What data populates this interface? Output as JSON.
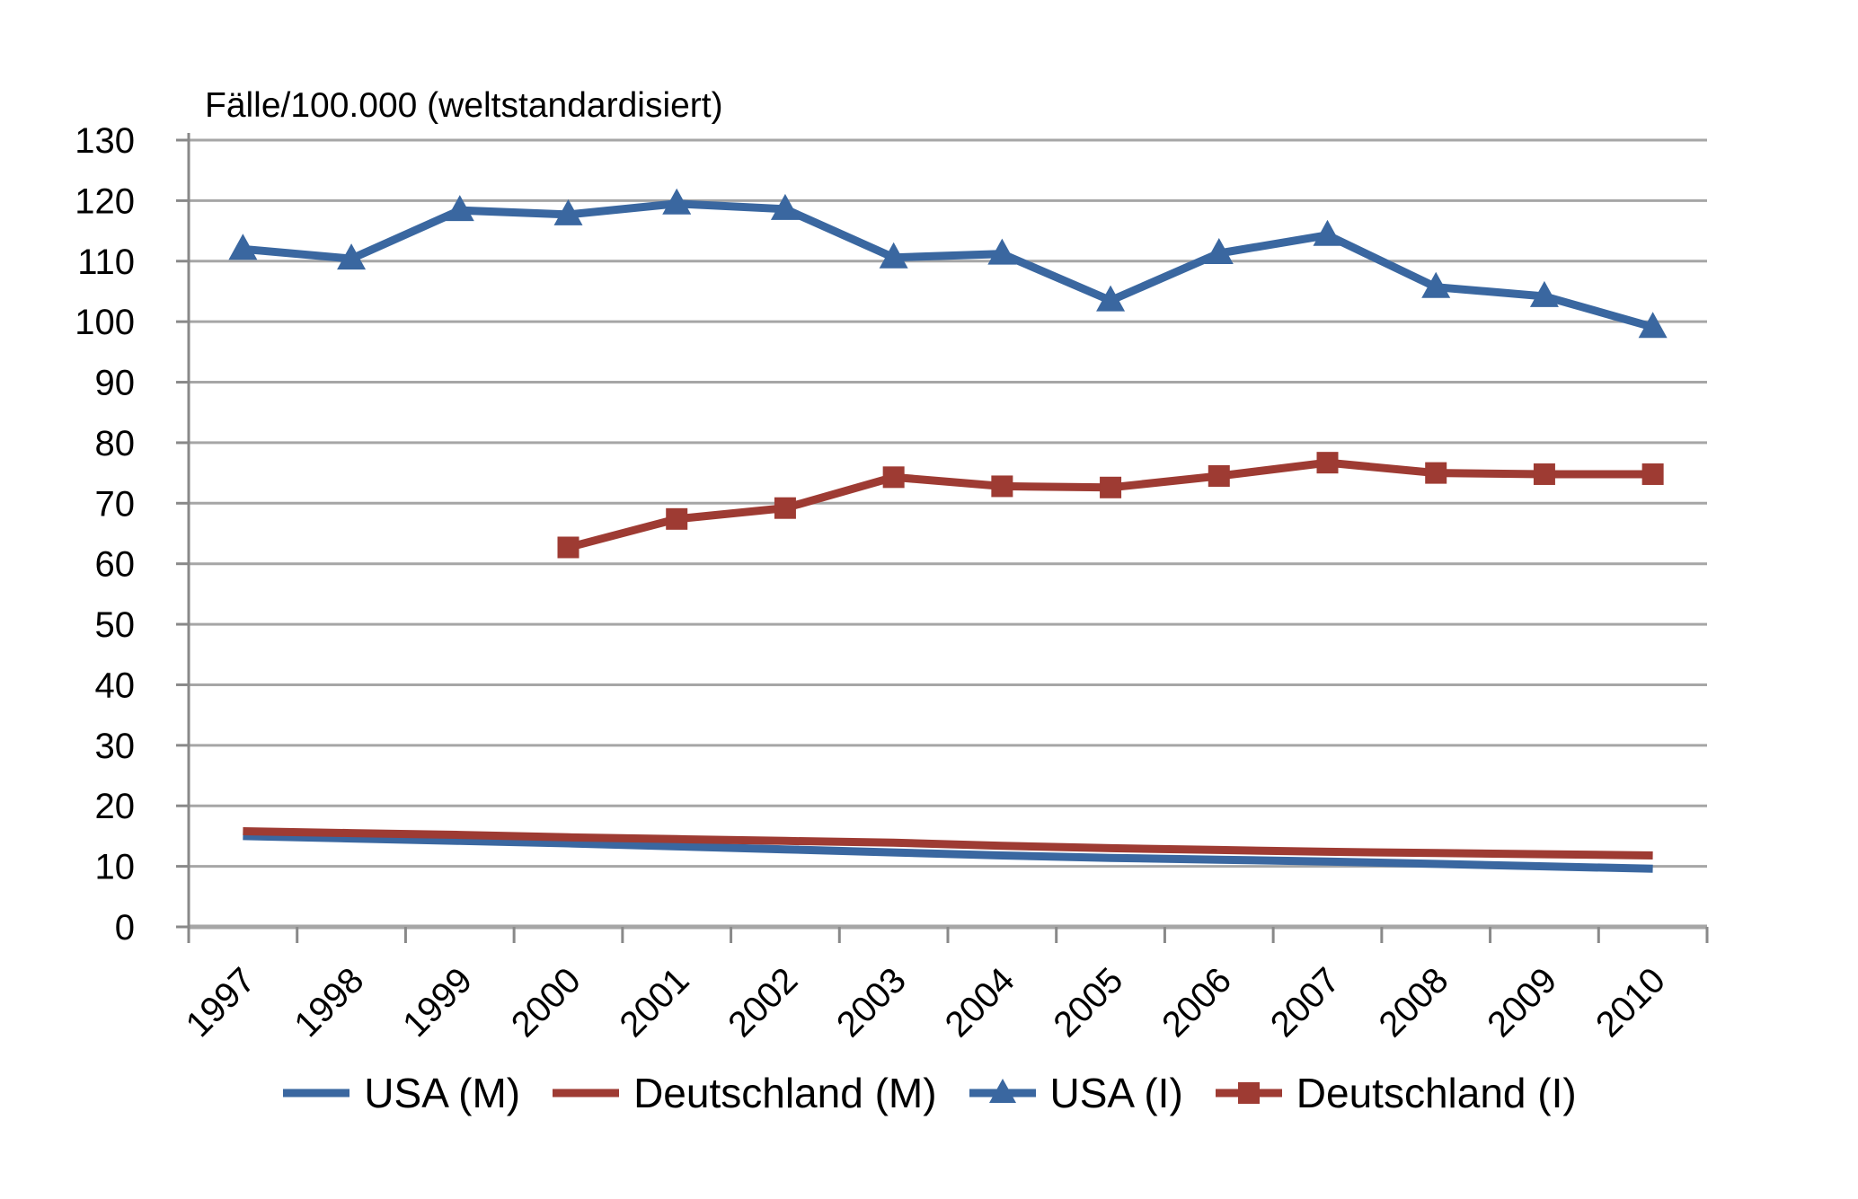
{
  "chart_data": {
    "type": "line",
    "title": "Fälle/100.000 (weltstandardisiert)",
    "x": [
      1997,
      1998,
      1999,
      2000,
      2001,
      2002,
      2003,
      2004,
      2005,
      2006,
      2007,
      2008,
      2009,
      2010
    ],
    "series": [
      {
        "name": "USA (M)",
        "color": "#3a67a0",
        "marker": "none",
        "values": [
          15.0,
          14.6,
          14.2,
          13.8,
          13.3,
          12.8,
          12.3,
          11.8,
          11.4,
          11.1,
          10.8,
          10.4,
          10.0,
          9.6
        ]
      },
      {
        "name": "Deutschland (M)",
        "color": "#9e3b33",
        "marker": "none",
        "values": [
          15.8,
          15.5,
          15.2,
          14.8,
          14.5,
          14.2,
          13.9,
          13.4,
          13.0,
          12.7,
          12.4,
          12.2,
          12.0,
          11.8
        ]
      },
      {
        "name": "USA (I)",
        "color": "#3a67a0",
        "marker": "triangle",
        "values": [
          112.0,
          110.4,
          118.4,
          117.7,
          119.5,
          118.6,
          110.6,
          111.2,
          103.5,
          111.3,
          114.3,
          105.7,
          104.2,
          99.1
        ]
      },
      {
        "name": "Deutschland (I)",
        "color": "#9e3b33",
        "marker": "square",
        "values": [
          null,
          null,
          null,
          62.7,
          67.4,
          69.2,
          74.3,
          72.8,
          72.6,
          74.5,
          76.7,
          75.0,
          74.8,
          74.8
        ]
      }
    ],
    "ylim": [
      0,
      130
    ],
    "ytick_step": 10,
    "xlabel": "",
    "ylabel": "",
    "grid": "horizontal",
    "legend_position": "bottom",
    "colors": {
      "gridline": "#a6a6a6",
      "axis": "#898989",
      "text": "#000000",
      "background": "#ffffff"
    }
  }
}
